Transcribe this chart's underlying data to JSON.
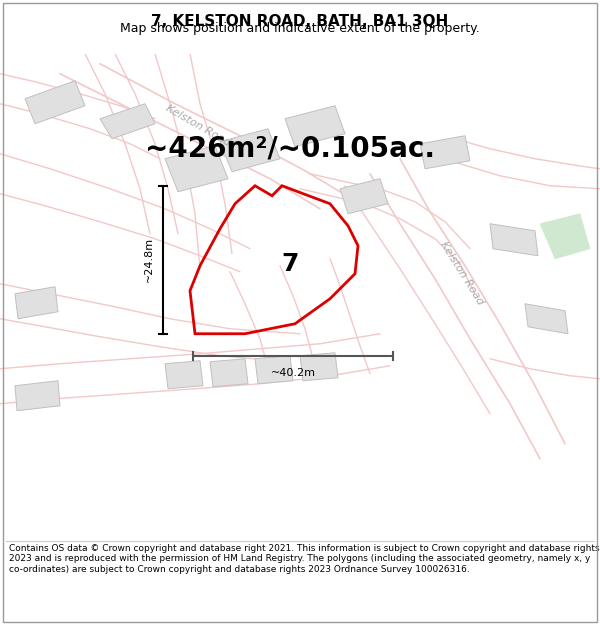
{
  "title": "7, KELSTON ROAD, BATH, BA1 3QH",
  "subtitle": "Map shows position and indicative extent of the property.",
  "footer": "Contains OS data © Crown copyright and database right 2021. This information is subject to Crown copyright and database rights 2023 and is reproduced with the permission of HM Land Registry. The polygons (including the associated geometry, namely x, y co-ordinates) are subject to Crown copyright and database rights 2023 Ordnance Survey 100026316.",
  "area_text": "~426m²/~0.105ac.",
  "width_label": "~40.2m",
  "height_label": "~24.8m",
  "property_number": "7",
  "map_bg": "#ffffff",
  "road_color": "#f2c8c8",
  "road_edge": "#e8b0b0",
  "building_color": "#e0e0e0",
  "building_edge": "#c0c0c0",
  "property_edge": "#dd0000",
  "road_label_color": "#aaaaaa",
  "green_area_color": "#d0e8d0",
  "title_fontsize": 11,
  "subtitle_fontsize": 9,
  "footer_fontsize": 6.5,
  "area_fontsize": 20
}
